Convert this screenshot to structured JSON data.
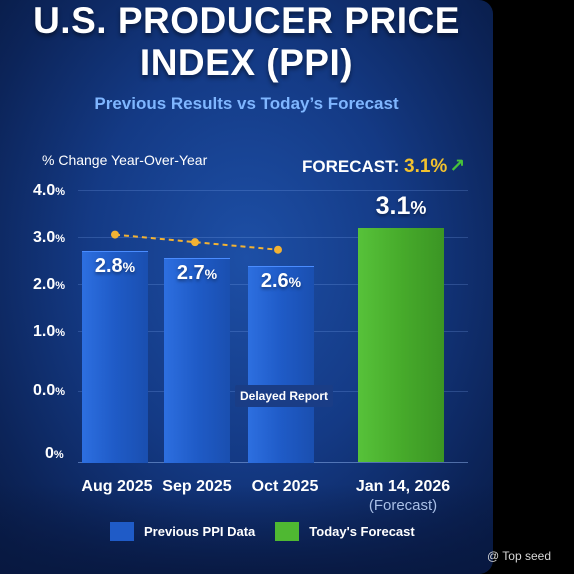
{
  "header": {
    "title_line1": "U.S. PRODUCER PRICE",
    "title_line2": "INDEX (PPI)",
    "subtitle": "Previous Results vs Today’s Forecast"
  },
  "forecast_badge": {
    "label": "FORECAST:",
    "value": "3.1%",
    "arrow_icon": "up-arrow-icon"
  },
  "annotation": "Delayed Report",
  "watermark": "@ Top seed",
  "colors": {
    "previous": "#1f5bc7",
    "forecast": "#4fb832",
    "trend_line": "#f2b233",
    "background": "#143a85"
  },
  "chart_data": {
    "type": "bar",
    "ylabel": "% Change Year-Over-Year",
    "y_tick_labels": [
      {
        "text": "4.0",
        "suffix": "%"
      },
      {
        "text": "3.0",
        "suffix": "%"
      },
      {
        "text": "2.0",
        "suffix": "%"
      },
      {
        "text": "1.0",
        "suffix": "%"
      },
      {
        "text": "0.0",
        "suffix": "%"
      },
      {
        "text": "0",
        "suffix": "%"
      }
    ],
    "categories": [
      "Aug 2025",
      "Sep 2025",
      "Oct 2025",
      "Jan 14, 2026"
    ],
    "category_subtitle": [
      "",
      "",
      "",
      "(Forecast)"
    ],
    "values": [
      2.8,
      2.7,
      2.6,
      3.1
    ],
    "value_labels": [
      {
        "num": "2.8",
        "pct": "%"
      },
      {
        "num": "2.7",
        "pct": "%"
      },
      {
        "num": "2.6",
        "pct": "%"
      },
      {
        "num": "3.1",
        "pct": "%"
      }
    ],
    "trend_line_values": [
      2.8,
      2.7,
      2.6
    ],
    "series": [
      {
        "name": "Previous PPI Data",
        "points": [
          0,
          1,
          2
        ]
      },
      {
        "name": "Today's Forecast",
        "points": [
          3
        ]
      }
    ],
    "grid": true,
    "legend_position": "bottom"
  }
}
